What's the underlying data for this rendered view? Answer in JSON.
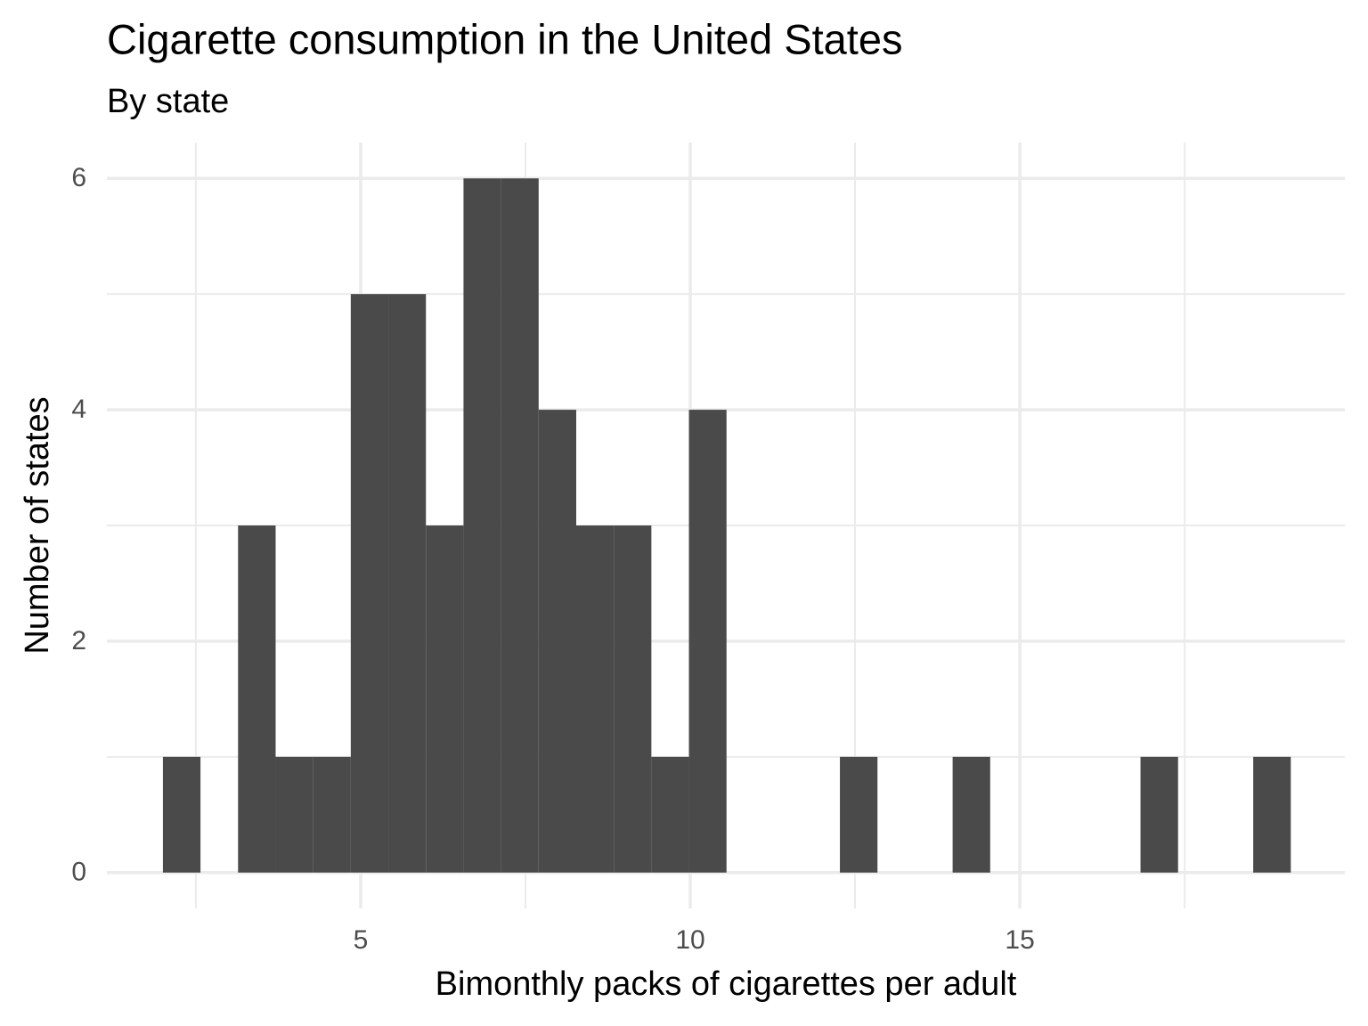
{
  "chart_data": {
    "type": "histogram",
    "title": "Cigarette consumption in the United States",
    "subtitle": "By state",
    "x_label": "Bimonthly packs of cigarettes per adult",
    "y_label": "Number of states",
    "bins": [
      2.0,
      2.57,
      3.14,
      3.71,
      4.28,
      4.85,
      5.42,
      5.99,
      6.56,
      7.13,
      7.7,
      8.27,
      8.84,
      9.41,
      9.98,
      10.55,
      11.12,
      11.7,
      12.27,
      12.84,
      13.41,
      13.98,
      14.55,
      15.12,
      15.69,
      16.26,
      16.83,
      17.4,
      17.97,
      18.54,
      19.11
    ],
    "counts": [
      1,
      0,
      3,
      1,
      1,
      5,
      5,
      3,
      6,
      6,
      4,
      3,
      3,
      1,
      4,
      0,
      0,
      0,
      1,
      0,
      0,
      1,
      0,
      0,
      0,
      0,
      1,
      0,
      0,
      1
    ],
    "color": "#4a4a4a",
    "xlim": [
      1.15,
      19.93
    ],
    "ylim": [
      -0.31,
      6.31
    ],
    "xticks": [
      5,
      10,
      15
    ],
    "yticks": [
      0,
      2,
      4,
      6
    ],
    "x_minor_ticks": [
      2.5,
      7.5,
      12.5,
      17.5
    ],
    "y_minor_ticks": [
      1,
      3,
      5
    ],
    "grid": true
  }
}
